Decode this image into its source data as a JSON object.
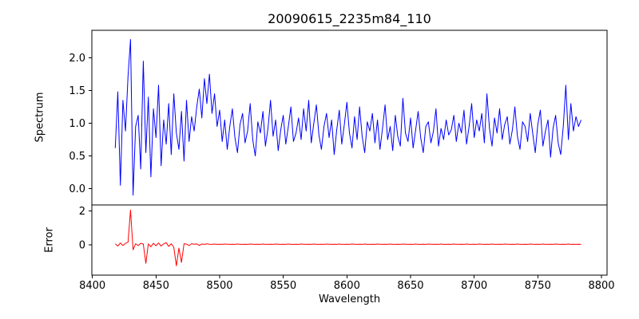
{
  "chart_data": {
    "type": "line",
    "title": "20090615_2235m84_110",
    "xlabel": "Wavelength",
    "xlim": [
      8399.6,
      8804.4
    ],
    "xticks": [
      8400,
      8450,
      8500,
      8550,
      8600,
      8650,
      8700,
      8750,
      8800
    ],
    "grid": false,
    "legend": "none",
    "panels": [
      {
        "name": "spectrum",
        "ylabel": "Spectrum",
        "color": "#0000ff",
        "ylim": [
          -0.25,
          2.42
        ],
        "yticks": [
          0.0,
          0.5,
          1.0,
          1.5,
          2.0
        ],
        "ytick_labels": [
          "0.0",
          "0.5",
          "1.0",
          "1.5",
          "2.0"
        ],
        "x_start": 8418,
        "x_step": 2,
        "values": [
          0.62,
          1.48,
          0.05,
          1.35,
          0.88,
          1.72,
          2.28,
          -0.1,
          0.95,
          1.12,
          0.3,
          1.95,
          0.55,
          1.4,
          0.18,
          1.22,
          0.78,
          1.58,
          0.35,
          1.05,
          0.68,
          1.3,
          0.52,
          1.45,
          0.85,
          0.6,
          1.18,
          0.42,
          1.35,
          0.72,
          1.1,
          0.88,
          1.25,
          1.52,
          1.08,
          1.68,
          1.3,
          1.75,
          1.15,
          1.45,
          0.95,
          1.2,
          0.72,
          1.05,
          0.6,
          0.95,
          1.22,
          0.78,
          0.55,
          0.98,
          1.15,
          0.7,
          0.88,
          1.3,
          0.75,
          0.5,
          1.02,
          0.85,
          1.18,
          0.65,
          0.92,
          1.35,
          0.8,
          1.05,
          0.58,
          0.9,
          1.12,
          0.68,
          0.95,
          1.25,
          0.72,
          0.85,
          1.08,
          0.75,
          1.22,
          0.88,
          1.35,
          0.7,
          1.0,
          1.28,
          0.82,
          0.6,
          0.95,
          1.15,
          0.78,
          1.05,
          0.52,
          0.9,
          1.2,
          0.68,
          0.98,
          1.32,
          0.85,
          0.62,
          1.1,
          0.75,
          1.25,
          0.8,
          0.55,
          1.02,
          0.88,
          1.15,
          0.7,
          1.05,
          0.6,
          0.92,
          1.28,
          0.75,
          0.95,
          0.58,
          1.12,
          0.8,
          0.65,
          1.38,
          0.85,
          0.72,
          1.08,
          0.62,
          0.9,
          1.18,
          0.78,
          0.55,
          0.95,
          1.02,
          0.7,
          0.88,
          1.22,
          0.65,
          0.92,
          0.75,
          1.05,
          0.82,
          0.9,
          1.12,
          0.72,
          1.0,
          0.85,
          1.2,
          0.68,
          0.95,
          1.3,
          0.78,
          1.05,
          0.88,
          1.15,
          0.7,
          1.45,
          0.92,
          0.65,
          1.08,
          0.85,
          1.22,
          0.75,
          0.98,
          1.1,
          0.68,
          0.9,
          1.25,
          0.8,
          0.6,
          1.02,
          0.95,
          0.72,
          1.15,
          0.85,
          0.55,
          0.98,
          1.2,
          0.65,
          0.88,
          1.05,
          0.48,
          0.92,
          1.12,
          0.7,
          0.52,
          0.95,
          1.58,
          0.75,
          1.3,
          0.88,
          1.1,
          0.95,
          1.05
        ]
      },
      {
        "name": "error",
        "ylabel": "Error",
        "color": "#ff0000",
        "ylim": [
          -1.8,
          2.35
        ],
        "yticks": [
          0,
          2
        ],
        "ytick_labels": [
          "0",
          "2"
        ],
        "x_start": 8418,
        "x_step": 2,
        "values": [
          0.05,
          -0.08,
          0.1,
          -0.05,
          0.08,
          0.15,
          2.05,
          -0.3,
          0.06,
          -0.05,
          0.08,
          0.04,
          -1.1,
          0.05,
          -0.12,
          0.08,
          -0.06,
          0.1,
          -0.08,
          0.05,
          0.12,
          -0.1,
          0.06,
          -0.15,
          -1.25,
          -0.2,
          -1.05,
          0.06,
          0.04,
          -0.05,
          0.06,
          0.03,
          0.05,
          -0.04,
          0.04,
          0.02,
          0.05,
          0.03,
          0.02,
          0.04,
          0.02,
          0.03,
          0.02,
          0.04,
          0.03,
          0.02,
          0.03,
          0.02,
          0.04,
          0.02,
          0.02,
          0.03,
          0.02,
          0.04,
          0.03,
          0.02,
          0.03,
          0.02,
          0.04,
          0.02,
          0.02,
          0.03,
          0.02,
          0.04,
          0.03,
          0.02,
          0.03,
          0.02,
          0.04,
          0.02,
          0.02,
          0.03,
          0.02,
          0.04,
          0.03,
          0.02,
          0.03,
          0.02,
          0.04,
          0.02,
          0.02,
          0.03,
          0.02,
          0.04,
          0.03,
          0.02,
          0.03,
          0.02,
          0.04,
          0.02,
          0.02,
          0.03,
          0.02,
          0.04,
          0.03,
          0.02,
          0.03,
          0.02,
          0.04,
          0.02,
          0.02,
          0.03,
          0.02,
          0.04,
          0.03,
          0.02,
          0.03,
          0.02,
          0.04,
          0.02,
          0.02,
          0.03,
          0.02,
          0.04,
          0.03,
          0.02,
          0.03,
          0.02,
          0.04,
          0.02,
          0.02,
          0.03,
          0.02,
          0.04,
          0.03,
          0.02,
          0.03,
          0.02,
          0.04,
          0.02,
          0.02,
          0.03,
          0.02,
          0.04,
          0.03,
          0.02,
          0.03,
          0.02,
          0.04,
          0.02,
          0.02,
          0.03,
          0.02,
          0.04,
          0.03,
          0.02,
          0.03,
          0.02,
          0.04,
          0.02,
          0.02,
          0.03,
          0.02,
          0.04,
          0.03,
          0.02,
          0.03,
          0.02,
          0.04,
          0.02,
          0.02,
          0.03,
          0.02,
          0.04,
          0.03,
          0.02,
          0.03,
          0.02,
          0.04,
          0.02,
          0.02,
          0.03,
          0.02,
          0.04,
          0.03,
          0.02,
          0.03,
          0.02,
          0.04,
          0.02,
          0.03,
          0.02,
          0.03,
          0.02
        ]
      }
    ]
  }
}
